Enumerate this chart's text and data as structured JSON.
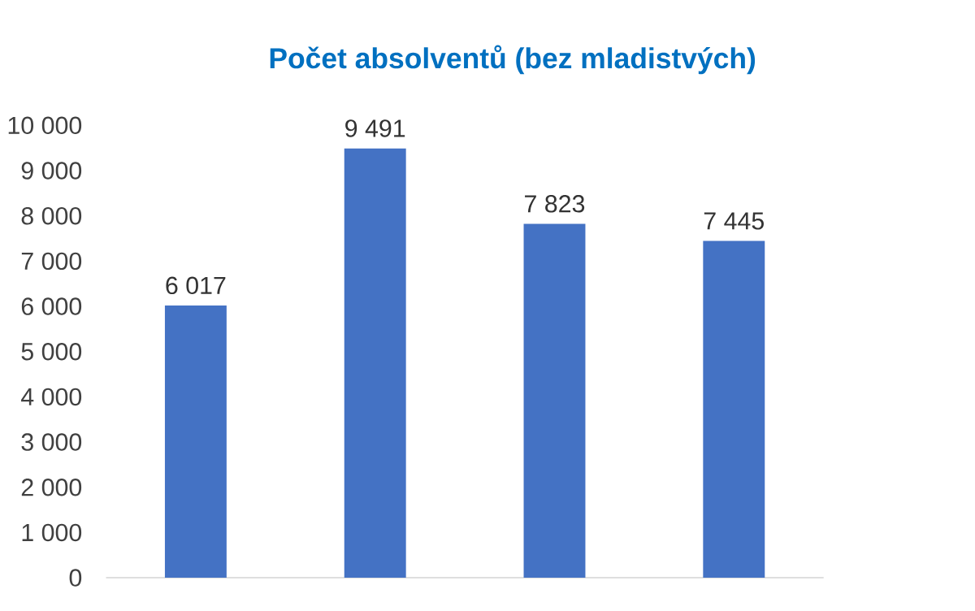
{
  "chart_data": {
    "type": "bar",
    "title": "Počet absolventů (bez mladistvých)",
    "categories": [
      null,
      null,
      null,
      null
    ],
    "values": [
      6017,
      9491,
      7823,
      7445
    ],
    "value_labels": [
      "6 017",
      "9 491",
      "7 823",
      "7 445"
    ],
    "color": "#4472c4",
    "ylim": [
      0,
      10000
    ],
    "yticks": [
      0,
      {
        "value": 1000,
        "label": "1 000"
      },
      {
        "value": 2000,
        "label": "2 000"
      },
      {
        "value": 3000,
        "label": "3 000"
      },
      {
        "value": 4000,
        "label": "4 000"
      },
      {
        "value": 5000,
        "label": "5 000"
      },
      {
        "value": 6000,
        "label": "6 000"
      },
      {
        "value": 7000,
        "label": "7 000"
      },
      {
        "value": 8000,
        "label": "8 000"
      },
      {
        "value": 9000,
        "label": "9 000"
      },
      {
        "value": 10000,
        "label": "10 000"
      }
    ]
  }
}
